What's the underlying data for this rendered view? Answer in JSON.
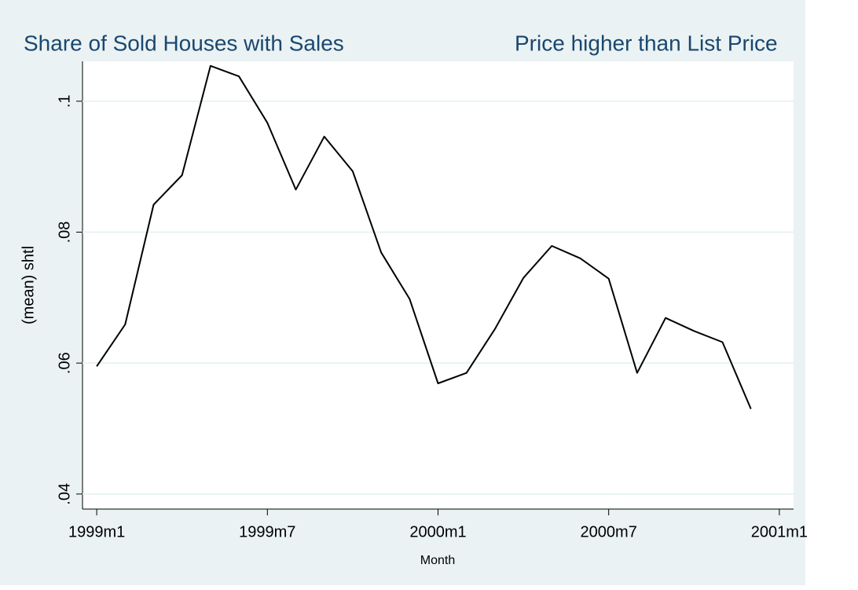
{
  "chart_data": {
    "type": "line",
    "title": [
      "Share of Sold Houses with Sales",
      "Price higher than List Price"
    ],
    "x_label": "Month",
    "y_label": "(mean) shtl",
    "x": [
      468,
      469,
      470,
      471,
      472,
      473,
      474,
      475,
      476,
      477,
      478,
      479,
      480,
      481,
      482,
      483,
      484,
      485,
      486,
      487,
      488,
      489,
      490,
      491
    ],
    "series": [
      {
        "color": "#000000",
        "values": [
          0.0595,
          0.0659,
          0.0842,
          0.0887,
          0.1054,
          0.1038,
          0.0967,
          0.0865,
          0.0946,
          0.0893,
          0.0769,
          0.0698,
          0.0569,
          0.0585,
          0.0652,
          0.073,
          0.0779,
          0.076,
          0.0729,
          0.0585,
          0.0669,
          0.0649,
          0.0632,
          0.053
        ]
      }
    ],
    "xlim": [
      467.5,
      492.5
    ],
    "xticks": [
      {
        "value": 468,
        "label": "1999m1"
      },
      {
        "value": 474,
        "label": "1999m7"
      },
      {
        "value": 480,
        "label": "2000m1"
      },
      {
        "value": 486,
        "label": "2000m7"
      },
      {
        "value": 492,
        "label": "2001m1"
      }
    ],
    "ylim": [
      0.0377,
      0.1061
    ],
    "yticks": [
      {
        "value": 0.04,
        "label": ".04"
      },
      {
        "value": 0.06,
        "label": ".06"
      },
      {
        "value": 0.08,
        "label": ".08"
      },
      {
        "value": 0.1,
        "label": ".1"
      }
    ],
    "grid": true
  }
}
